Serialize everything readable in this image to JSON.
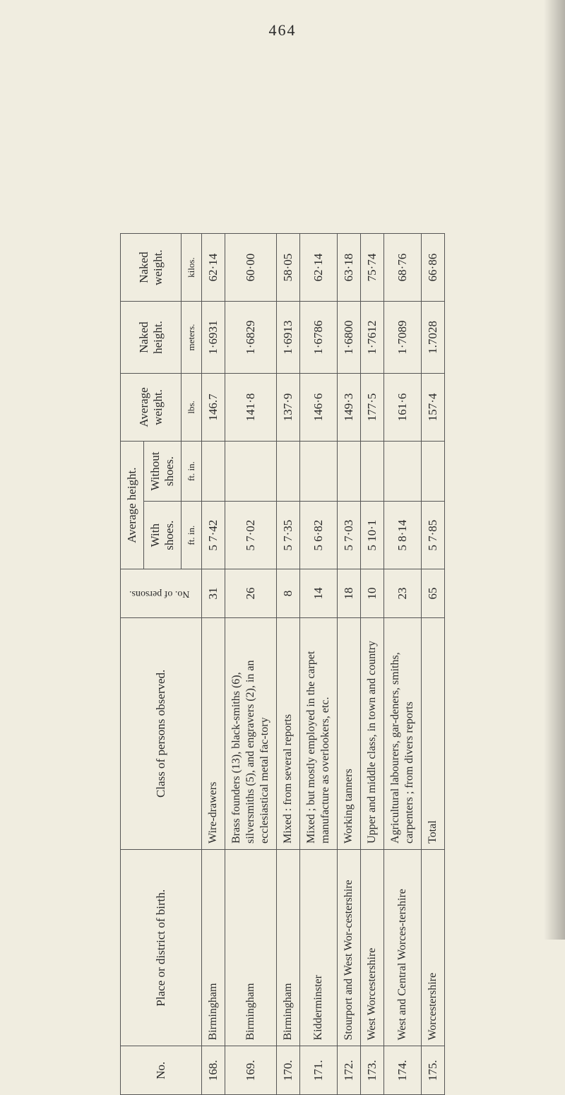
{
  "page_number": "464",
  "headers": {
    "no": "No.",
    "place": "Place or district of birth.",
    "class": "Class of persons observed.",
    "persons": "No. of persons.",
    "avg_height": "Average height.",
    "with_shoes": "With shoes.",
    "without_shoes": "Without shoes.",
    "avg_weight": "Average weight.",
    "naked_height": "Naked height.",
    "naked_weight": "Naked weight.",
    "ft_in": "ft.   in.",
    "ft_in2": "ft.   in.",
    "lbs": "lbs.",
    "meters": "meters.",
    "kilos": "kilos."
  },
  "rows": [
    {
      "no": "168.",
      "place": "Birmingham",
      "class": "Wire-drawers",
      "persons": "31",
      "with_shoes": "5  7·42",
      "without_shoes": "",
      "avg_weight": "146.7",
      "naked_height": "1·6931",
      "naked_weight": "62·14"
    },
    {
      "no": "169.",
      "place": "Birmingham",
      "class": "Brass founders (13), black-smiths (6), silversmiths (5), and engravers (2), in an ecclesiastical metal fac-tory",
      "persons": "26",
      "with_shoes": "5  7·02",
      "without_shoes": "",
      "avg_weight": "141·8",
      "naked_height": "1·6829",
      "naked_weight": "60·00"
    },
    {
      "no": "170.",
      "place": "Birmingham",
      "class": "Mixed : from several reports",
      "persons": "8",
      "with_shoes": "5  7·35",
      "without_shoes": "",
      "avg_weight": "137·9",
      "naked_height": "1·6913",
      "naked_weight": "58·05"
    },
    {
      "no": "171.",
      "place": "Kidderminster",
      "class": "Mixed ; but mostly employed in the carpet manufacture as overlookers, etc.",
      "persons": "14",
      "with_shoes": "5  6·82",
      "without_shoes": "",
      "avg_weight": "146·6",
      "naked_height": "1·6786",
      "naked_weight": "62·14"
    },
    {
      "no": "172.",
      "place": "Stourport and West Wor-cestershire",
      "class": "Working tanners",
      "persons": "18",
      "with_shoes": "5  7·03",
      "without_shoes": "",
      "avg_weight": "149·3",
      "naked_height": "1·6800",
      "naked_weight": "63·18"
    },
    {
      "no": "173.",
      "place": "West Worcestershire",
      "class": "Upper and middle class, in town and country",
      "persons": "10",
      "with_shoes": "5 10·1",
      "without_shoes": "",
      "avg_weight": "177·5",
      "naked_height": "1·7612",
      "naked_weight": "75·74"
    },
    {
      "no": "174.",
      "place": "West and Central Worces-tershire",
      "class": "Agricultural labourers, gar-deners, smiths, carpenters ; from divers reports",
      "persons": "23",
      "with_shoes": "5  8·14",
      "without_shoes": "",
      "avg_weight": "161·6",
      "naked_height": "1·7089",
      "naked_weight": "68·76"
    },
    {
      "no": "175.",
      "place": "Worcestershire",
      "class": "Total",
      "persons": "65",
      "with_shoes": "5  7·85",
      "without_shoes": "",
      "avg_weight": "157·4",
      "naked_height": "1.7028",
      "naked_weight": "66·86"
    }
  ],
  "style": {
    "page_bg": "#f0ede0",
    "text_color": "#2a2a2a",
    "border_color": "#555",
    "font_family": "Times New Roman",
    "body_fontsize": 17,
    "header_fontsize": 17,
    "sub_fontsize": 13
  }
}
